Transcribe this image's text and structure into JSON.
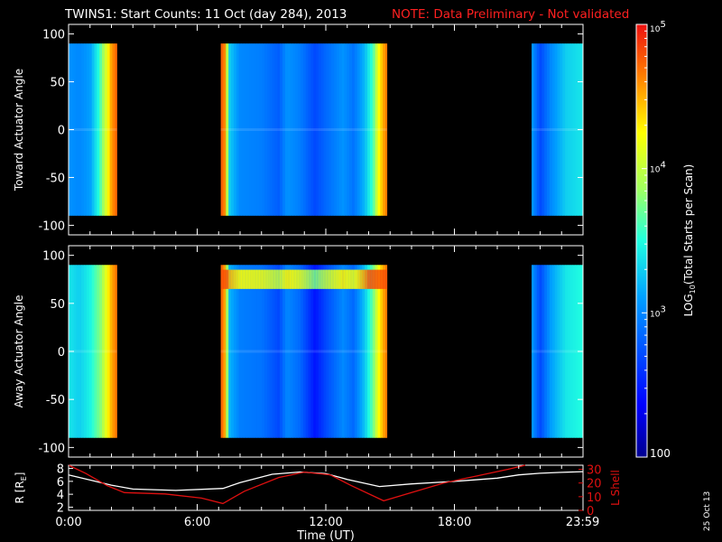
{
  "header": {
    "title": "TWINS1: Start Counts: 11 Oct (day 284), 2013",
    "note": "NOTE: Data Preliminary - Not validated"
  },
  "footer": {
    "date_stamp": "25 Oct 13"
  },
  "colors": {
    "note": "#ff2020",
    "lshell": "#e01010",
    "radius": "#ffffff",
    "frame": "#ffffff",
    "background": "#000000"
  },
  "chart_data": [
    {
      "type": "heatmap",
      "panel": "toward",
      "ylabel": "Toward Actuator Angle",
      "ylim": [
        -110,
        110
      ],
      "yticks": [
        100,
        50,
        0,
        -50,
        -100
      ],
      "xlim": [
        0,
        24
      ],
      "data_angle_range": [
        -90,
        90
      ],
      "scan_segments": [
        [
          0,
          2.25
        ],
        [
          7.1,
          14.85
        ],
        [
          21.6,
          24
        ]
      ],
      "time_profile_log10": [
        [
          0.0,
          3.05
        ],
        [
          0.5,
          3.0
        ],
        [
          1.0,
          3.1
        ],
        [
          1.4,
          3.5
        ],
        [
          1.7,
          4.0
        ],
        [
          2.0,
          4.55
        ],
        [
          2.25,
          4.75
        ],
        [
          7.1,
          4.8
        ],
        [
          7.3,
          4.6
        ],
        [
          7.5,
          3.3
        ],
        [
          8.0,
          3.0
        ],
        [
          9.0,
          2.95
        ],
        [
          9.8,
          2.8
        ],
        [
          10.2,
          3.05
        ],
        [
          10.8,
          2.95
        ],
        [
          11.5,
          2.7
        ],
        [
          12.0,
          2.85
        ],
        [
          12.8,
          3.05
        ],
        [
          13.3,
          2.9
        ],
        [
          13.8,
          3.2
        ],
        [
          14.2,
          3.6
        ],
        [
          14.5,
          4.3
        ],
        [
          14.85,
          4.7
        ],
        [
          21.6,
          3.1
        ],
        [
          22.0,
          2.7
        ],
        [
          22.5,
          3.0
        ],
        [
          23.2,
          3.3
        ],
        [
          24.0,
          3.4
        ]
      ],
      "time_ticks": [
        "0:00",
        "6:00",
        "12:00",
        "18:00",
        "23:59"
      ]
    },
    {
      "type": "heatmap",
      "panel": "away",
      "ylabel": "Away Actuator Angle",
      "ylim": [
        -110,
        110
      ],
      "yticks": [
        100,
        50,
        0,
        -50,
        -100
      ],
      "xlim": [
        0,
        24
      ],
      "data_angle_range": [
        -90,
        90
      ],
      "scan_segments": [
        [
          0,
          2.25
        ],
        [
          7.1,
          14.85
        ],
        [
          21.6,
          24
        ]
      ],
      "time_profile_log10": [
        [
          0.0,
          3.4
        ],
        [
          0.5,
          3.3
        ],
        [
          1.0,
          3.45
        ],
        [
          1.5,
          3.8
        ],
        [
          2.0,
          4.5
        ],
        [
          2.25,
          4.7
        ],
        [
          7.1,
          4.8
        ],
        [
          7.3,
          4.5
        ],
        [
          7.5,
          3.2
        ],
        [
          8.0,
          2.95
        ],
        [
          9.0,
          2.9
        ],
        [
          9.8,
          2.7
        ],
        [
          10.2,
          3.0
        ],
        [
          10.8,
          2.85
        ],
        [
          11.5,
          2.45
        ],
        [
          12.0,
          2.7
        ],
        [
          12.8,
          3.0
        ],
        [
          13.3,
          2.85
        ],
        [
          13.8,
          3.25
        ],
        [
          14.2,
          3.7
        ],
        [
          14.5,
          4.3
        ],
        [
          14.85,
          4.7
        ],
        [
          21.6,
          3.1
        ],
        [
          22.0,
          2.7
        ],
        [
          22.5,
          3.1
        ],
        [
          23.2,
          3.4
        ],
        [
          24.0,
          3.5
        ]
      ],
      "band_enhancement_angle": [
        65,
        85
      ],
      "time_ticks": [
        "0:00",
        "6:00",
        "12:00",
        "18:00",
        "23:59"
      ]
    },
    {
      "type": "line",
      "panel": "orbit",
      "xlabel": "Time (UT)",
      "ylabel_left": "R [R",
      "ylabel_left_sub": "E",
      "ylabel_left_close": "]",
      "ylabel_right": "L Shell",
      "ylim_left": [
        1.5,
        8.5
      ],
      "yticks_left": [
        2,
        4,
        6,
        8
      ],
      "ylim_right": [
        0,
        33
      ],
      "yticks_right": [
        0,
        10,
        20,
        30
      ],
      "xlim": [
        0,
        24
      ],
      "series": [
        {
          "name": "R [RE]",
          "axis": "left",
          "points": [
            [
              0,
              7.0
            ],
            [
              1,
              6.2
            ],
            [
              2,
              5.4
            ],
            [
              3,
              4.8
            ],
            [
              5,
              4.6
            ],
            [
              7.2,
              4.9
            ],
            [
              8,
              5.8
            ],
            [
              9.5,
              7.1
            ],
            [
              10.8,
              7.45
            ],
            [
              12,
              7.2
            ],
            [
              13,
              6.3
            ],
            [
              14.5,
              5.2
            ],
            [
              16,
              5.6
            ],
            [
              18,
              6.0
            ],
            [
              20,
              6.5
            ],
            [
              21,
              7.0
            ],
            [
              22,
              7.25
            ],
            [
              23,
              7.4
            ],
            [
              24,
              7.5
            ]
          ]
        },
        {
          "name": "L Shell",
          "axis": "right",
          "points": [
            [
              0,
              33
            ],
            [
              0.8,
              27
            ],
            [
              1.8,
              18
            ],
            [
              2.6,
              13
            ],
            [
              4.5,
              12
            ],
            [
              6.2,
              9
            ],
            [
              7.2,
              5
            ],
            [
              8.2,
              14
            ],
            [
              9.8,
              24
            ],
            [
              11,
              28
            ],
            [
              12.2,
              26
            ],
            [
              13.2,
              18
            ],
            [
              14.7,
              7
            ],
            [
              16,
              13
            ],
            [
              17.5,
              20
            ],
            [
              19,
              25
            ],
            [
              20.5,
              30
            ],
            [
              21.3,
              33
            ]
          ]
        }
      ],
      "time_ticks": [
        "0:00",
        "6:00",
        "12:00",
        "18:00",
        "23:59"
      ]
    },
    {
      "type": "colorbar",
      "label_prefix": "LOG",
      "label_sub": "10",
      "label_suffix": "(Total Starts per Scan)",
      "range_log10": [
        2,
        5
      ],
      "ticks": [
        {
          "base": "10",
          "exp": "5",
          "value": 5
        },
        {
          "base": "10",
          "exp": "4",
          "value": 4
        },
        {
          "base": "10",
          "exp": "3",
          "value": 3
        },
        {
          "base": "100",
          "exp": "",
          "value": 2
        }
      ]
    }
  ]
}
